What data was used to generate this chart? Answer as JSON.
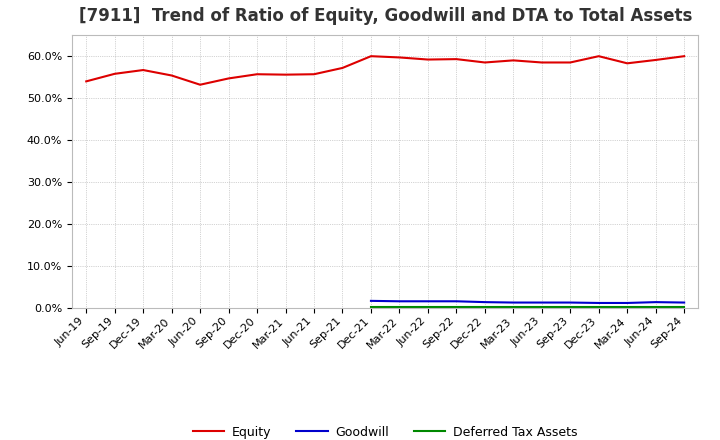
{
  "title": "[7911]  Trend of Ratio of Equity, Goodwill and DTA to Total Assets",
  "x_labels": [
    "Jun-19",
    "Sep-19",
    "Dec-19",
    "Mar-20",
    "Jun-20",
    "Sep-20",
    "Dec-20",
    "Mar-21",
    "Jun-21",
    "Sep-21",
    "Dec-21",
    "Mar-22",
    "Jun-22",
    "Sep-22",
    "Dec-22",
    "Mar-23",
    "Jun-23",
    "Sep-23",
    "Dec-23",
    "Mar-24",
    "Jun-24",
    "Sep-24"
  ],
  "equity": [
    0.54,
    0.558,
    0.567,
    0.554,
    0.532,
    0.547,
    0.557,
    0.556,
    0.557,
    0.572,
    0.6,
    0.597,
    0.592,
    0.593,
    0.585,
    0.59,
    0.585,
    0.585,
    0.6,
    0.583,
    0.591,
    0.6
  ],
  "goodwill": [
    null,
    null,
    null,
    null,
    null,
    null,
    null,
    null,
    null,
    null,
    0.017,
    0.016,
    0.016,
    0.016,
    0.014,
    0.013,
    0.013,
    0.013,
    0.012,
    0.012,
    0.014,
    0.013
  ],
  "dta": [
    null,
    null,
    null,
    null,
    null,
    null,
    null,
    null,
    null,
    null,
    0.002,
    0.002,
    0.002,
    0.002,
    0.002,
    0.002,
    0.002,
    0.002,
    0.002,
    0.002,
    0.002,
    0.002
  ],
  "equity_color": "#dd0000",
  "goodwill_color": "#0000cc",
  "dta_color": "#008800",
  "bg_color": "#ffffff",
  "plot_bg_color": "#ffffff",
  "grid_color": "#aaaaaa",
  "ylim": [
    0.0,
    0.65
  ],
  "yticks": [
    0.0,
    0.1,
    0.2,
    0.3,
    0.4,
    0.5,
    0.6
  ],
  "legend_labels": [
    "Equity",
    "Goodwill",
    "Deferred Tax Assets"
  ],
  "title_fontsize": 12,
  "axis_fontsize": 8,
  "legend_fontsize": 9,
  "title_color": "#333333"
}
